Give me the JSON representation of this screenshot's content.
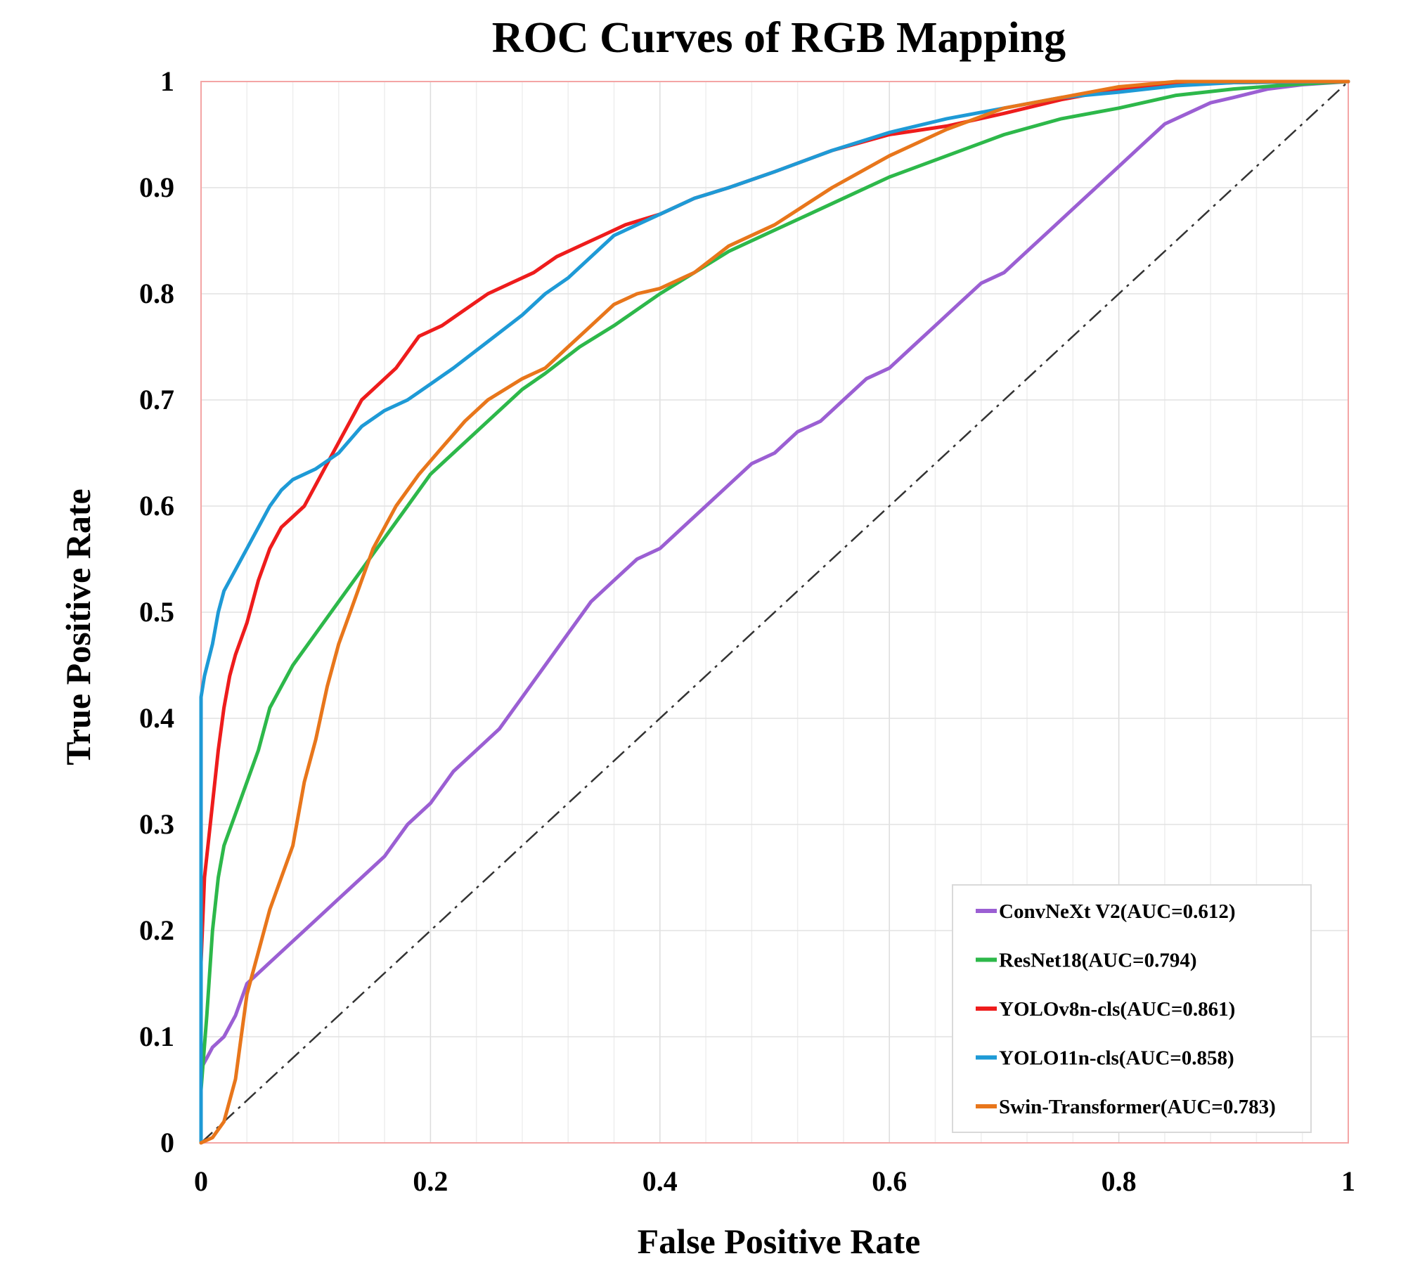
{
  "chart_data": {
    "type": "line",
    "title": "ROC Curves of RGB Mapping",
    "xlabel": "False Positive Rate",
    "ylabel": "True Positive Rate",
    "xlim": [
      0,
      1
    ],
    "ylim": [
      0,
      1
    ],
    "x_ticks": [
      "0",
      "0.2",
      "0.4",
      "0.6",
      "0.8",
      "1"
    ],
    "y_ticks": [
      "0",
      "0.1",
      "0.2",
      "0.3",
      "0.4",
      "0.5",
      "0.6",
      "0.7",
      "0.8",
      "0.9",
      "1"
    ],
    "grid": true,
    "legend_position": "bottom-right",
    "reference_line": {
      "style": "dash-dot",
      "color": "#333333",
      "points": [
        [
          0,
          0
        ],
        [
          1,
          1
        ]
      ]
    },
    "series": [
      {
        "name": "ConvNeXt V2(AUC=0.612)",
        "color": "#9b5fd3",
        "points": [
          [
            0,
            0.07
          ],
          [
            0.005,
            0.08
          ],
          [
            0.01,
            0.09
          ],
          [
            0.02,
            0.1
          ],
          [
            0.03,
            0.12
          ],
          [
            0.04,
            0.15
          ],
          [
            0.05,
            0.16
          ],
          [
            0.06,
            0.17
          ],
          [
            0.08,
            0.19
          ],
          [
            0.1,
            0.21
          ],
          [
            0.12,
            0.23
          ],
          [
            0.14,
            0.25
          ],
          [
            0.16,
            0.27
          ],
          [
            0.18,
            0.3
          ],
          [
            0.2,
            0.32
          ],
          [
            0.22,
            0.35
          ],
          [
            0.24,
            0.37
          ],
          [
            0.26,
            0.39
          ],
          [
            0.28,
            0.42
          ],
          [
            0.3,
            0.45
          ],
          [
            0.32,
            0.48
          ],
          [
            0.34,
            0.51
          ],
          [
            0.36,
            0.53
          ],
          [
            0.38,
            0.55
          ],
          [
            0.4,
            0.56
          ],
          [
            0.42,
            0.58
          ],
          [
            0.44,
            0.6
          ],
          [
            0.46,
            0.62
          ],
          [
            0.48,
            0.64
          ],
          [
            0.5,
            0.65
          ],
          [
            0.52,
            0.67
          ],
          [
            0.54,
            0.68
          ],
          [
            0.56,
            0.7
          ],
          [
            0.58,
            0.72
          ],
          [
            0.6,
            0.73
          ],
          [
            0.62,
            0.75
          ],
          [
            0.64,
            0.77
          ],
          [
            0.66,
            0.79
          ],
          [
            0.68,
            0.81
          ],
          [
            0.7,
            0.82
          ],
          [
            0.72,
            0.84
          ],
          [
            0.74,
            0.86
          ],
          [
            0.76,
            0.88
          ],
          [
            0.78,
            0.9
          ],
          [
            0.8,
            0.92
          ],
          [
            0.82,
            0.94
          ],
          [
            0.84,
            0.96
          ],
          [
            0.86,
            0.97
          ],
          [
            0.88,
            0.98
          ],
          [
            0.9,
            0.985
          ],
          [
            0.93,
            0.993
          ],
          [
            0.96,
            0.997
          ],
          [
            1,
            1
          ]
        ]
      },
      {
        "name": "ResNet18(AUC=0.794)",
        "color": "#2db84a",
        "points": [
          [
            0,
            0.05
          ],
          [
            0.005,
            0.12
          ],
          [
            0.01,
            0.2
          ],
          [
            0.015,
            0.25
          ],
          [
            0.02,
            0.28
          ],
          [
            0.03,
            0.31
          ],
          [
            0.04,
            0.34
          ],
          [
            0.05,
            0.37
          ],
          [
            0.06,
            0.41
          ],
          [
            0.07,
            0.43
          ],
          [
            0.08,
            0.45
          ],
          [
            0.1,
            0.48
          ],
          [
            0.12,
            0.51
          ],
          [
            0.14,
            0.54
          ],
          [
            0.16,
            0.57
          ],
          [
            0.18,
            0.6
          ],
          [
            0.2,
            0.63
          ],
          [
            0.22,
            0.65
          ],
          [
            0.25,
            0.68
          ],
          [
            0.28,
            0.71
          ],
          [
            0.3,
            0.725
          ],
          [
            0.33,
            0.75
          ],
          [
            0.36,
            0.77
          ],
          [
            0.4,
            0.8
          ],
          [
            0.43,
            0.82
          ],
          [
            0.46,
            0.84
          ],
          [
            0.5,
            0.86
          ],
          [
            0.55,
            0.885
          ],
          [
            0.6,
            0.91
          ],
          [
            0.65,
            0.93
          ],
          [
            0.7,
            0.95
          ],
          [
            0.75,
            0.965
          ],
          [
            0.8,
            0.975
          ],
          [
            0.85,
            0.987
          ],
          [
            0.9,
            0.993
          ],
          [
            0.95,
            0.997
          ],
          [
            1,
            1
          ]
        ]
      },
      {
        "name": "YOLOv8n-cls(AUC=0.861)",
        "color": "#ee1c1c",
        "points": [
          [
            0,
            0.17
          ],
          [
            0.003,
            0.25
          ],
          [
            0.008,
            0.3
          ],
          [
            0.015,
            0.37
          ],
          [
            0.02,
            0.41
          ],
          [
            0.025,
            0.44
          ],
          [
            0.03,
            0.46
          ],
          [
            0.04,
            0.49
          ],
          [
            0.05,
            0.53
          ],
          [
            0.06,
            0.56
          ],
          [
            0.07,
            0.58
          ],
          [
            0.08,
            0.59
          ],
          [
            0.09,
            0.6
          ],
          [
            0.1,
            0.62
          ],
          [
            0.11,
            0.64
          ],
          [
            0.12,
            0.66
          ],
          [
            0.13,
            0.68
          ],
          [
            0.14,
            0.7
          ],
          [
            0.15,
            0.71
          ],
          [
            0.17,
            0.73
          ],
          [
            0.19,
            0.76
          ],
          [
            0.21,
            0.77
          ],
          [
            0.23,
            0.785
          ],
          [
            0.25,
            0.8
          ],
          [
            0.27,
            0.81
          ],
          [
            0.29,
            0.82
          ],
          [
            0.31,
            0.835
          ],
          [
            0.33,
            0.845
          ],
          [
            0.35,
            0.855
          ],
          [
            0.37,
            0.865
          ],
          [
            0.4,
            0.875
          ],
          [
            0.43,
            0.89
          ],
          [
            0.46,
            0.9
          ],
          [
            0.5,
            0.915
          ],
          [
            0.55,
            0.935
          ],
          [
            0.6,
            0.95
          ],
          [
            0.65,
            0.958
          ],
          [
            0.7,
            0.97
          ],
          [
            0.75,
            0.983
          ],
          [
            0.8,
            0.993
          ],
          [
            0.85,
            0.997
          ],
          [
            0.9,
            0.999
          ],
          [
            1,
            1
          ]
        ]
      },
      {
        "name": "YOLO11n-cls(AUC=0.858)",
        "color": "#1e9ad6",
        "points": [
          [
            0,
            0
          ],
          [
            0,
            0.42
          ],
          [
            0.003,
            0.44
          ],
          [
            0.01,
            0.47
          ],
          [
            0.015,
            0.5
          ],
          [
            0.02,
            0.52
          ],
          [
            0.03,
            0.54
          ],
          [
            0.04,
            0.56
          ],
          [
            0.05,
            0.58
          ],
          [
            0.06,
            0.6
          ],
          [
            0.07,
            0.615
          ],
          [
            0.08,
            0.625
          ],
          [
            0.1,
            0.635
          ],
          [
            0.12,
            0.65
          ],
          [
            0.14,
            0.675
          ],
          [
            0.16,
            0.69
          ],
          [
            0.18,
            0.7
          ],
          [
            0.2,
            0.715
          ],
          [
            0.22,
            0.73
          ],
          [
            0.25,
            0.755
          ],
          [
            0.28,
            0.78
          ],
          [
            0.3,
            0.8
          ],
          [
            0.32,
            0.815
          ],
          [
            0.34,
            0.835
          ],
          [
            0.36,
            0.855
          ],
          [
            0.38,
            0.865
          ],
          [
            0.4,
            0.875
          ],
          [
            0.43,
            0.89
          ],
          [
            0.46,
            0.9
          ],
          [
            0.5,
            0.915
          ],
          [
            0.55,
            0.935
          ],
          [
            0.6,
            0.952
          ],
          [
            0.65,
            0.965
          ],
          [
            0.7,
            0.975
          ],
          [
            0.75,
            0.985
          ],
          [
            0.8,
            0.99
          ],
          [
            0.85,
            0.996
          ],
          [
            0.9,
            0.999
          ],
          [
            1,
            1
          ]
        ]
      },
      {
        "name": "Swin-Transformer(AUC=0.783)",
        "color": "#e8761b",
        "points": [
          [
            0,
            0
          ],
          [
            0.01,
            0.005
          ],
          [
            0.02,
            0.02
          ],
          [
            0.03,
            0.06
          ],
          [
            0.035,
            0.1
          ],
          [
            0.04,
            0.14
          ],
          [
            0.05,
            0.18
          ],
          [
            0.06,
            0.22
          ],
          [
            0.07,
            0.25
          ],
          [
            0.08,
            0.28
          ],
          [
            0.085,
            0.31
          ],
          [
            0.09,
            0.34
          ],
          [
            0.1,
            0.38
          ],
          [
            0.11,
            0.43
          ],
          [
            0.12,
            0.47
          ],
          [
            0.13,
            0.5
          ],
          [
            0.14,
            0.53
          ],
          [
            0.15,
            0.56
          ],
          [
            0.16,
            0.58
          ],
          [
            0.17,
            0.6
          ],
          [
            0.19,
            0.63
          ],
          [
            0.21,
            0.655
          ],
          [
            0.23,
            0.68
          ],
          [
            0.25,
            0.7
          ],
          [
            0.28,
            0.72
          ],
          [
            0.3,
            0.73
          ],
          [
            0.32,
            0.75
          ],
          [
            0.34,
            0.77
          ],
          [
            0.36,
            0.79
          ],
          [
            0.38,
            0.8
          ],
          [
            0.4,
            0.805
          ],
          [
            0.43,
            0.82
          ],
          [
            0.46,
            0.845
          ],
          [
            0.5,
            0.865
          ],
          [
            0.55,
            0.9
          ],
          [
            0.6,
            0.93
          ],
          [
            0.65,
            0.955
          ],
          [
            0.7,
            0.975
          ],
          [
            0.75,
            0.985
          ],
          [
            0.8,
            0.995
          ],
          [
            0.85,
            1
          ],
          [
            1,
            1
          ]
        ]
      }
    ]
  }
}
